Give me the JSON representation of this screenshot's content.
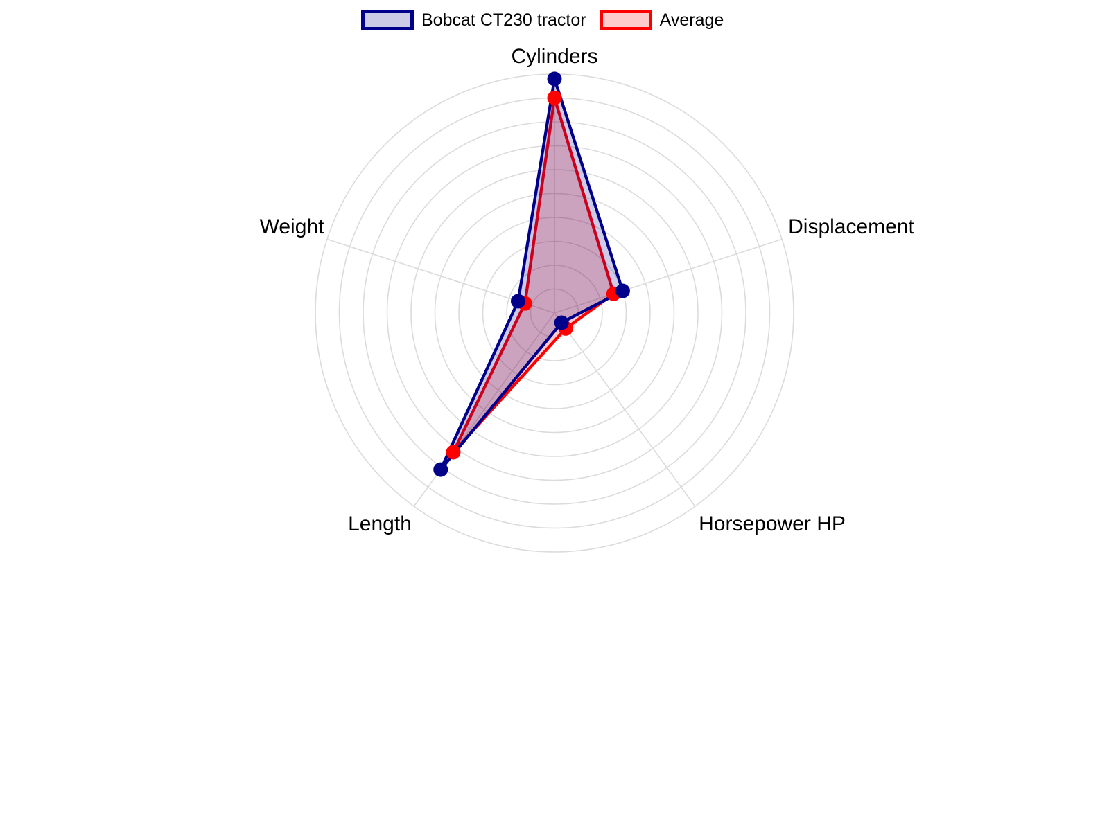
{
  "figure": {
    "background": "#ffffff"
  },
  "legend": {
    "position": "top",
    "items": [
      {
        "label": "Bobcat CT230 tractor",
        "line_color": "#00008B",
        "fill_color": "#CCCCE6"
      },
      {
        "label": "Average",
        "line_color": "#FF0000",
        "fill_color": "#FFCCCC"
      }
    ]
  },
  "chart_data": {
    "type": "radar",
    "categories": [
      "Cylinders",
      "Displacement",
      "Horsepower HP",
      "Length",
      "Weight"
    ],
    "series": [
      {
        "name": "Bobcat CT230 tractor",
        "values": [
          0.98,
          0.3,
          0.05,
          0.81,
          0.16
        ],
        "line_color": "#00008B",
        "fill_color": "rgba(0,0,139,0.2)"
      },
      {
        "name": "Average",
        "values": [
          0.9,
          0.26,
          0.08,
          0.72,
          0.13
        ],
        "line_color": "#FF0000",
        "fill_color": "rgba(255,0,0,0.2)"
      }
    ],
    "radial_range": [
      0,
      1
    ],
    "ring_count": 10,
    "grid": true,
    "grid_color": "#DBDBDB",
    "start_angle_deg": 90,
    "direction": "clockwise",
    "legend_position": "top",
    "axis_label_color": "#000000",
    "marker_radius": 10.5,
    "line_width": 4.3
  }
}
